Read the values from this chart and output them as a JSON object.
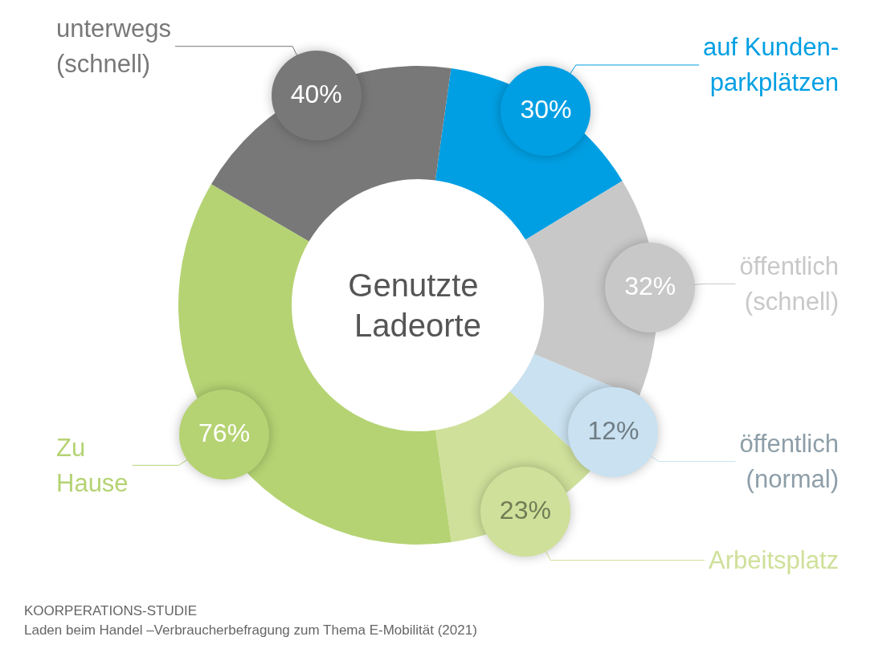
{
  "chart_data": {
    "type": "donut",
    "title": "Genutzte Ladeorte",
    "categories": [
      "auf Kunden-\nparkplätzen",
      "öffentlich\n(schnell)",
      "öffentlich\n(normal)",
      "Arbeitsplatz",
      "Zu\nHause",
      "unterwegs\n(schnell)"
    ],
    "values": [
      30,
      32,
      12,
      23,
      76,
      40
    ],
    "value_labels": [
      "30%",
      "32%",
      "12%",
      "23%",
      "76%",
      "40%"
    ],
    "colors": [
      "#009fe3",
      "#c8c8c8",
      "#c9e1f0",
      "#cfe09a",
      "#b5d373",
      "#787878"
    ],
    "annotations": [
      "KOORPERATIONS-STUDIE",
      "Laden beim Handel –Verbraucherbefragung zum Thema E-Mobilität (2021)"
    ]
  }
}
